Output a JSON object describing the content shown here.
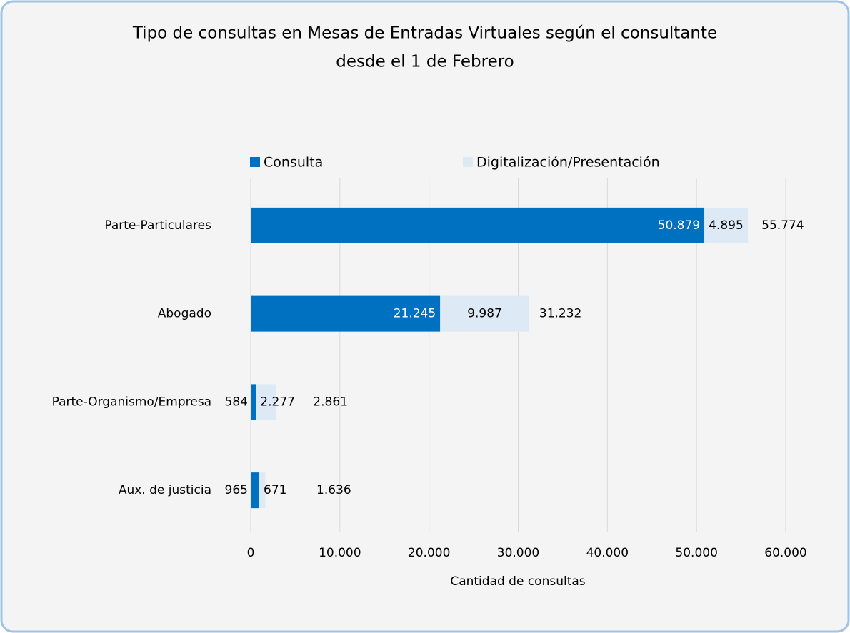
{
  "chart_data": {
    "type": "stacked-barh",
    "title": "Tipo de consultas en Mesas de Entradas Virtuales según el consultante",
    "subtitle": "desde el 1 de Febrero",
    "x_label": "Cantidad de consultas",
    "categories": [
      "Parte-Particulares",
      "Abogado",
      "Parte-Organismo/Empresa",
      "Aux. de justicia"
    ],
    "series": [
      {
        "name": "Consulta",
        "color": "#0070c0",
        "values": [
          50879,
          21245,
          584,
          965
        ],
        "value_labels": [
          "50.879",
          "21.245",
          "584",
          "965"
        ]
      },
      {
        "name": "Digitalización/Presentación",
        "color": "#dde9f5",
        "values": [
          4895,
          9987,
          2277,
          671
        ],
        "value_labels": [
          "4.895",
          "9.987",
          "2.277",
          "671"
        ]
      }
    ],
    "totals": {
      "values": [
        55774,
        31232,
        2861,
        1636
      ],
      "value_labels": [
        "55.774",
        "31.232",
        "2.861",
        "1.636"
      ]
    },
    "xlim": [
      0,
      60000
    ],
    "xticks": [
      0,
      {
        "value": 10000,
        "label": "10.000"
      },
      {
        "value": 20000,
        "label": "20.000"
      },
      {
        "value": 30000,
        "label": "30.000"
      },
      {
        "value": 40000,
        "label": "40.000"
      },
      {
        "value": 50000,
        "label": "50.000"
      },
      {
        "value": 60000,
        "label": "60.000"
      }
    ],
    "grid": true
  }
}
